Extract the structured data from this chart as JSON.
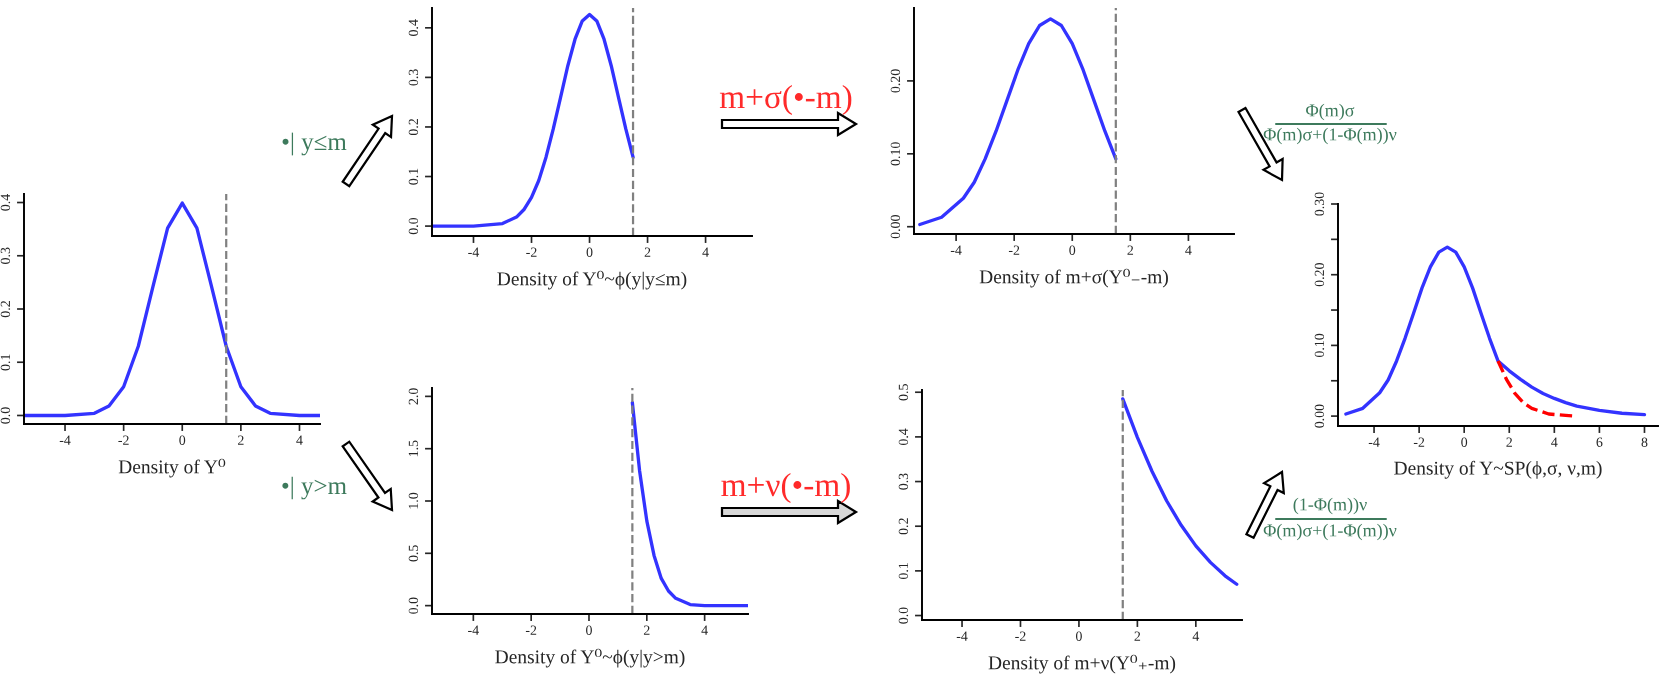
{
  "chart_data": [
    {
      "type": "line",
      "xlabel": "Density of Y⁰",
      "xlim": [
        -5.4,
        4.7
      ],
      "ylim": [
        -0.016,
        0.416
      ],
      "xticks": [
        -4,
        -2,
        0,
        2,
        4
      ],
      "yticks": [
        {
          "value": 0,
          "label": "0.0"
        },
        {
          "value": 0.1,
          "label": "0.1"
        },
        {
          "value": 0.2,
          "label": "0.2"
        },
        {
          "value": 0.3,
          "label": "0.3"
        },
        {
          "value": 0.4,
          "label": "0.4"
        }
      ],
      "series": [
        {
          "color": "#3333ff",
          "x": [
            -5.4,
            -4,
            -3,
            -2.5,
            -2,
            -1.5,
            -1,
            -0.5,
            0,
            0.5,
            1,
            1.5,
            2,
            2.5,
            3,
            4,
            4.7
          ],
          "values": [
            0.0,
            0.0,
            0.004,
            0.018,
            0.054,
            0.13,
            0.242,
            0.352,
            0.399,
            0.352,
            0.242,
            0.13,
            0.054,
            0.018,
            0.004,
            0.0,
            0.0
          ]
        }
      ],
      "ref_lines": [
        {
          "axis": "x",
          "value": 1.5,
          "color": "#808080",
          "line_style": "dashed"
        }
      ]
    },
    {
      "type": "line",
      "xlabel": "Density of Y⁰~ϕ(y|y≤m)",
      "xlim": [
        -5.43,
        5.6
      ],
      "ylim": [
        -0.02,
        0.44
      ],
      "xticks": [
        -4,
        -2,
        0,
        2,
        4
      ],
      "yticks": [
        {
          "value": 0,
          "label": "0.0"
        },
        {
          "value": 0.1,
          "label": "0.1"
        },
        {
          "value": 0.2,
          "label": "0.2"
        },
        {
          "value": 0.3,
          "label": "0.3"
        },
        {
          "value": 0.4,
          "label": "0.4"
        }
      ],
      "annotations": [
        "•| y≤m"
      ],
      "series": [
        {
          "color": "#3333ff",
          "x": [
            -5.4,
            -4,
            -3,
            -2.5,
            -2.25,
            -2,
            -1.75,
            -1.5,
            -1.25,
            -1,
            -0.75,
            -0.5,
            -0.25,
            0,
            0.25,
            0.5,
            0.75,
            1,
            1.25,
            1.5
          ],
          "values": [
            0.0,
            0.0,
            0.005,
            0.019,
            0.034,
            0.058,
            0.092,
            0.139,
            0.196,
            0.259,
            0.323,
            0.377,
            0.414,
            0.427,
            0.414,
            0.377,
            0.323,
            0.259,
            0.196,
            0.139
          ]
        }
      ],
      "ref_lines": [
        {
          "axis": "x",
          "value": 1.5,
          "color": "#808080",
          "line_style": "dashed"
        }
      ]
    },
    {
      "type": "line",
      "xlabel": "Density of Y⁰~ϕ(y|y>m)",
      "xlim": [
        -5.43,
        5.5
      ],
      "ylim": [
        -0.08,
        2.08
      ],
      "xticks": [
        -4,
        -2,
        0,
        2,
        4
      ],
      "yticks": [
        {
          "value": 0,
          "label": "0.0"
        },
        {
          "value": 0.5,
          "label": "0.5"
        },
        {
          "value": 1.0,
          "label": "1.0"
        },
        {
          "value": 1.5,
          "label": "1.5"
        },
        {
          "value": 2.0,
          "label": "2.0"
        }
      ],
      "annotations": [
        "•| y>m"
      ],
      "series": [
        {
          "color": "#3333ff",
          "x": [
            1.5,
            1.75,
            2,
            2.25,
            2.5,
            2.75,
            3,
            3.5,
            4,
            4.5,
            5.5
          ],
          "values": [
            1.94,
            1.29,
            0.81,
            0.48,
            0.26,
            0.14,
            0.07,
            0.01,
            0.0,
            0.0,
            0.0
          ]
        }
      ],
      "ref_lines": [
        {
          "axis": "x",
          "value": 1.5,
          "color": "#808080",
          "line_style": "dashed"
        }
      ]
    },
    {
      "type": "line",
      "xlabel": "Density of m+σ(Y⁰₋-m)",
      "xlim": [
        -5.45,
        5.57
      ],
      "ylim": [
        -0.01,
        0.3
      ],
      "xticks": [
        -4,
        -2,
        0,
        2,
        4
      ],
      "yticks": [
        {
          "value": 0,
          "label": "0.00"
        },
        {
          "value": 0.1,
          "label": "0.10"
        },
        {
          "value": 0.2,
          "label": "0.20"
        }
      ],
      "annotations": [
        "m+σ(•-m)"
      ],
      "series": [
        {
          "color": "#3333ff",
          "x": [
            -5.25,
            -4.5,
            -3.75,
            -3.375,
            -3,
            -2.625,
            -2.25,
            -1.875,
            -1.5,
            -1.125,
            -0.75,
            -0.375,
            0,
            0.375,
            0.75,
            1.125,
            1.5
          ],
          "values": [
            0.003,
            0.013,
            0.039,
            0.061,
            0.093,
            0.131,
            0.173,
            0.215,
            0.251,
            0.276,
            0.285,
            0.276,
            0.251,
            0.215,
            0.173,
            0.131,
            0.093
          ]
        }
      ],
      "ref_lines": [
        {
          "axis": "x",
          "value": 1.5,
          "color": "#808080",
          "line_style": "dashed"
        }
      ]
    },
    {
      "type": "line",
      "xlabel": "Density of m+ν(Y⁰₊-m)",
      "xlim": [
        -5.37,
        5.58
      ],
      "ylim": [
        -0.01,
        0.505
      ],
      "xticks": [
        -4,
        -2,
        0,
        2,
        4
      ],
      "yticks": [
        {
          "value": 0,
          "label": "0.0"
        },
        {
          "value": 0.1,
          "label": "0.1"
        },
        {
          "value": 0.2,
          "label": "0.2"
        },
        {
          "value": 0.3,
          "label": "0.3"
        },
        {
          "value": 0.4,
          "label": "0.4"
        },
        {
          "value": 0.5,
          "label": "0.5"
        }
      ],
      "annotations": [
        "m+ν(•-m)"
      ],
      "series": [
        {
          "color": "#3333ff",
          "x": [
            1.5,
            2,
            2.5,
            3,
            3.5,
            4,
            4.5,
            5,
            5.4
          ],
          "values": [
            0.485,
            0.399,
            0.323,
            0.257,
            0.202,
            0.156,
            0.119,
            0.089,
            0.07
          ]
        }
      ],
      "ref_lines": [
        {
          "axis": "x",
          "value": 1.5,
          "color": "#808080",
          "line_style": "dashed"
        }
      ]
    },
    {
      "type": "line",
      "xlabel": "Density of Y~SP(ϕ,σ, ν,m)",
      "xlim": [
        -5.6,
        8.6
      ],
      "ylim": [
        -0.014,
        0.3
      ],
      "xticks": [
        -4,
        -2,
        0,
        2,
        4,
        6,
        8
      ],
      "yticks": [
        {
          "value": 0,
          "label": "0.00"
        },
        {
          "value": 0.05,
          "label": null
        },
        {
          "value": 0.1,
          "label": "0.10"
        },
        {
          "value": 0.15,
          "label": null
        },
        {
          "value": 0.2,
          "label": "0.20"
        },
        {
          "value": 0.25,
          "label": null
        },
        {
          "value": 0.3,
          "label": "0.30"
        }
      ],
      "annotations": [
        "Φ(m)σ",
        "Φ(m)σ+(1-Φ(m))ν",
        "(1-Φ(m))ν",
        "Φ(m)σ+(1-Φ(m))ν"
      ],
      "series": [
        {
          "color": "#3333ff",
          "line_style": "solid",
          "x": [
            -5.25,
            -4.5,
            -3.75,
            -3.375,
            -3,
            -2.625,
            -2.25,
            -1.875,
            -1.5,
            -1.125,
            -0.75,
            -0.375,
            0,
            0.375,
            0.75,
            1.125,
            1.5,
            2,
            2.5,
            3,
            3.5,
            4,
            4.5,
            5,
            6,
            7,
            8
          ],
          "values": [
            0.003,
            0.011,
            0.033,
            0.051,
            0.078,
            0.11,
            0.145,
            0.181,
            0.211,
            0.232,
            0.239,
            0.232,
            0.211,
            0.181,
            0.145,
            0.11,
            0.078,
            0.064,
            0.052,
            0.041,
            0.032,
            0.025,
            0.019,
            0.014,
            0.008,
            0.004,
            0.002
          ]
        },
        {
          "color": "#ff0000",
          "line_style": "dashed",
          "x": [
            1.5,
            1.875,
            2.25,
            2.625,
            3,
            3.75,
            4.5,
            5
          ],
          "values": [
            0.078,
            0.052,
            0.032,
            0.019,
            0.011,
            0.003,
            0.001,
            0.0
          ]
        }
      ]
    }
  ]
}
